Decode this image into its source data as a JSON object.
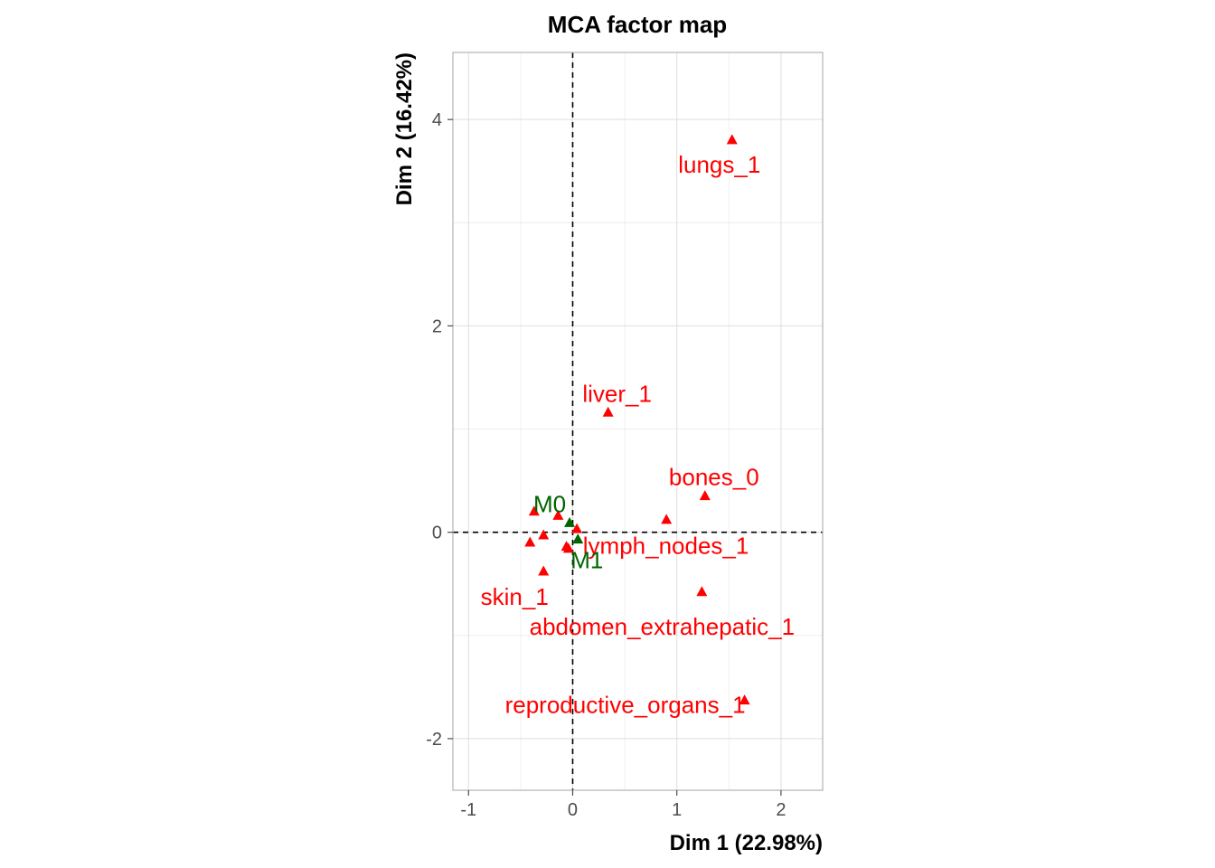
{
  "chart_data": {
    "type": "scatter",
    "title": "MCA factor map",
    "xlabel": "Dim 1 (22.98%)",
    "ylabel": "Dim 2 (16.42%)",
    "xlim": [
      -1.15,
      2.4
    ],
    "ylim": [
      -2.5,
      4.65
    ],
    "x_ticks": [
      -1,
      0,
      1,
      2
    ],
    "y_ticks": [
      -2,
      0,
      2,
      4
    ],
    "x_tick_labels": [
      "-1",
      "0",
      "1",
      "2"
    ],
    "y_tick_labels": [
      "-2",
      "0",
      "2",
      "4"
    ],
    "grid": true,
    "reference_lines": {
      "x": 0,
      "y": 0,
      "style": "dashed"
    },
    "series": [
      {
        "color": "#ff0000",
        "marker": "triangle",
        "points": [
          {
            "x": 1.53,
            "y": 3.8,
            "label": "lungs_1"
          },
          {
            "x": 0.34,
            "y": 1.16,
            "label": "liver_1"
          },
          {
            "x": 1.27,
            "y": 0.35,
            "label": "bones_0"
          },
          {
            "x": 0.9,
            "y": 0.12,
            "label": ""
          },
          {
            "x": 0.04,
            "y": 0.03,
            "label": ""
          },
          {
            "x": -0.06,
            "y": -0.14,
            "label": "lymph_nodes_1"
          },
          {
            "x": -0.37,
            "y": 0.2,
            "label": ""
          },
          {
            "x": -0.14,
            "y": 0.16,
            "label": ""
          },
          {
            "x": -0.28,
            "y": -0.03,
            "label": ""
          },
          {
            "x": -0.41,
            "y": -0.1,
            "label": ""
          },
          {
            "x": -0.04,
            "y": -0.16,
            "label": ""
          },
          {
            "x": -0.28,
            "y": -0.38,
            "label": "skin_1"
          },
          {
            "x": 1.24,
            "y": -0.58,
            "label": "abdomen_extrahepatic_1"
          },
          {
            "x": 1.65,
            "y": -1.63,
            "label": "reproductive_organs_1"
          }
        ]
      },
      {
        "color": "#006400",
        "marker": "triangle",
        "points": [
          {
            "x": -0.03,
            "y": 0.09,
            "label": "M0"
          },
          {
            "x": 0.05,
            "y": -0.07,
            "label": "M1"
          }
        ]
      }
    ]
  }
}
